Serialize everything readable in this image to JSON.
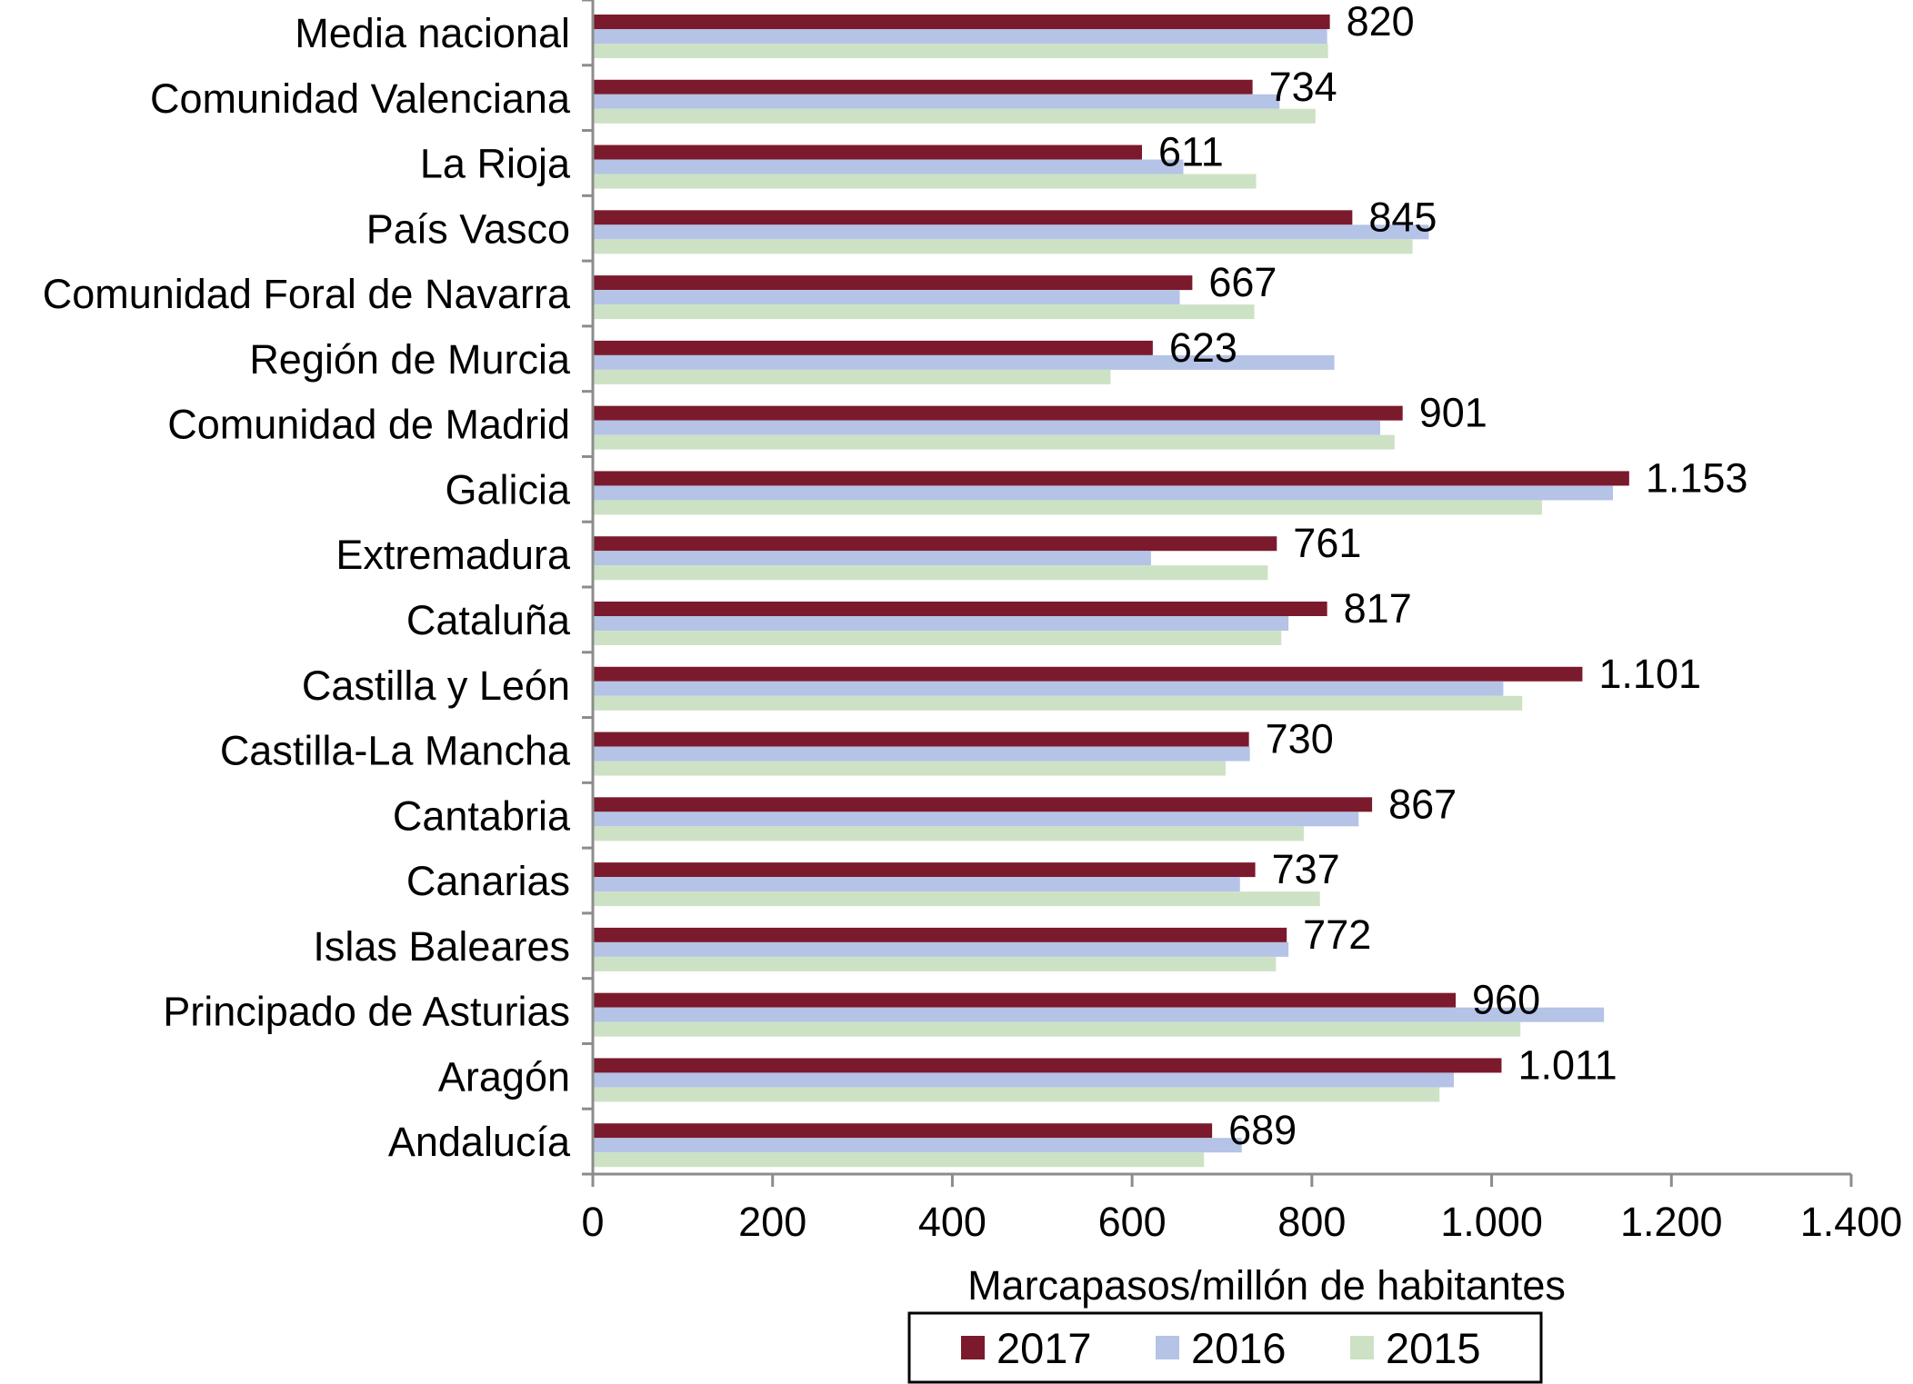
{
  "chart_data": {
    "type": "bar",
    "orientation": "horizontal",
    "title": "",
    "xlabel": "Marcapasos/millón de habitantes",
    "ylabel": "",
    "xlim": [
      0,
      1400
    ],
    "grid": false,
    "legend_position": "bottom",
    "x_ticks": [
      0,
      200,
      400,
      600,
      800,
      1000,
      1200,
      1400
    ],
    "x_tick_labels": [
      "0",
      "200",
      "400",
      "600",
      "800",
      "1.000",
      "1.200",
      "1.400"
    ],
    "categories": [
      "Media nacional",
      "Comunidad Valenciana",
      "La Rioja",
      "País Vasco",
      "Comunidad Foral de Navarra",
      "Región de Murcia",
      "Comunidad de Madrid",
      "Galicia",
      "Extremadura",
      "Cataluña",
      "Castilla y León",
      "Castilla-La Mancha",
      "Cantabria",
      "Canarias",
      "Islas Baleares",
      "Principado de Asturias",
      "Aragón",
      "Andalucía"
    ],
    "series": [
      {
        "name": "2017",
        "color": "#7b1a2c",
        "values": [
          820,
          734,
          611,
          845,
          667,
          623,
          901,
          1153,
          761,
          817,
          1101,
          730,
          867,
          737,
          772,
          960,
          1011,
          689
        ],
        "labels": [
          "820",
          "734",
          "611",
          "845",
          "667",
          "623",
          "901",
          "1.153",
          "761",
          "817",
          "1.101",
          "730",
          "867",
          "737",
          "772",
          "960",
          "1.011",
          "689"
        ]
      },
      {
        "name": "2016",
        "color": "#b4c3e6",
        "values": [
          817,
          764,
          657,
          930,
          653,
          825,
          876,
          1135,
          621,
          774,
          1013,
          731,
          852,
          720,
          774,
          1125,
          958,
          722
        ]
      },
      {
        "name": "2015",
        "color": "#cde2c4",
        "values": [
          818,
          804,
          738,
          912,
          736,
          576,
          892,
          1056,
          751,
          766,
          1034,
          704,
          791,
          809,
          760,
          1032,
          942,
          680
        ]
      }
    ]
  }
}
